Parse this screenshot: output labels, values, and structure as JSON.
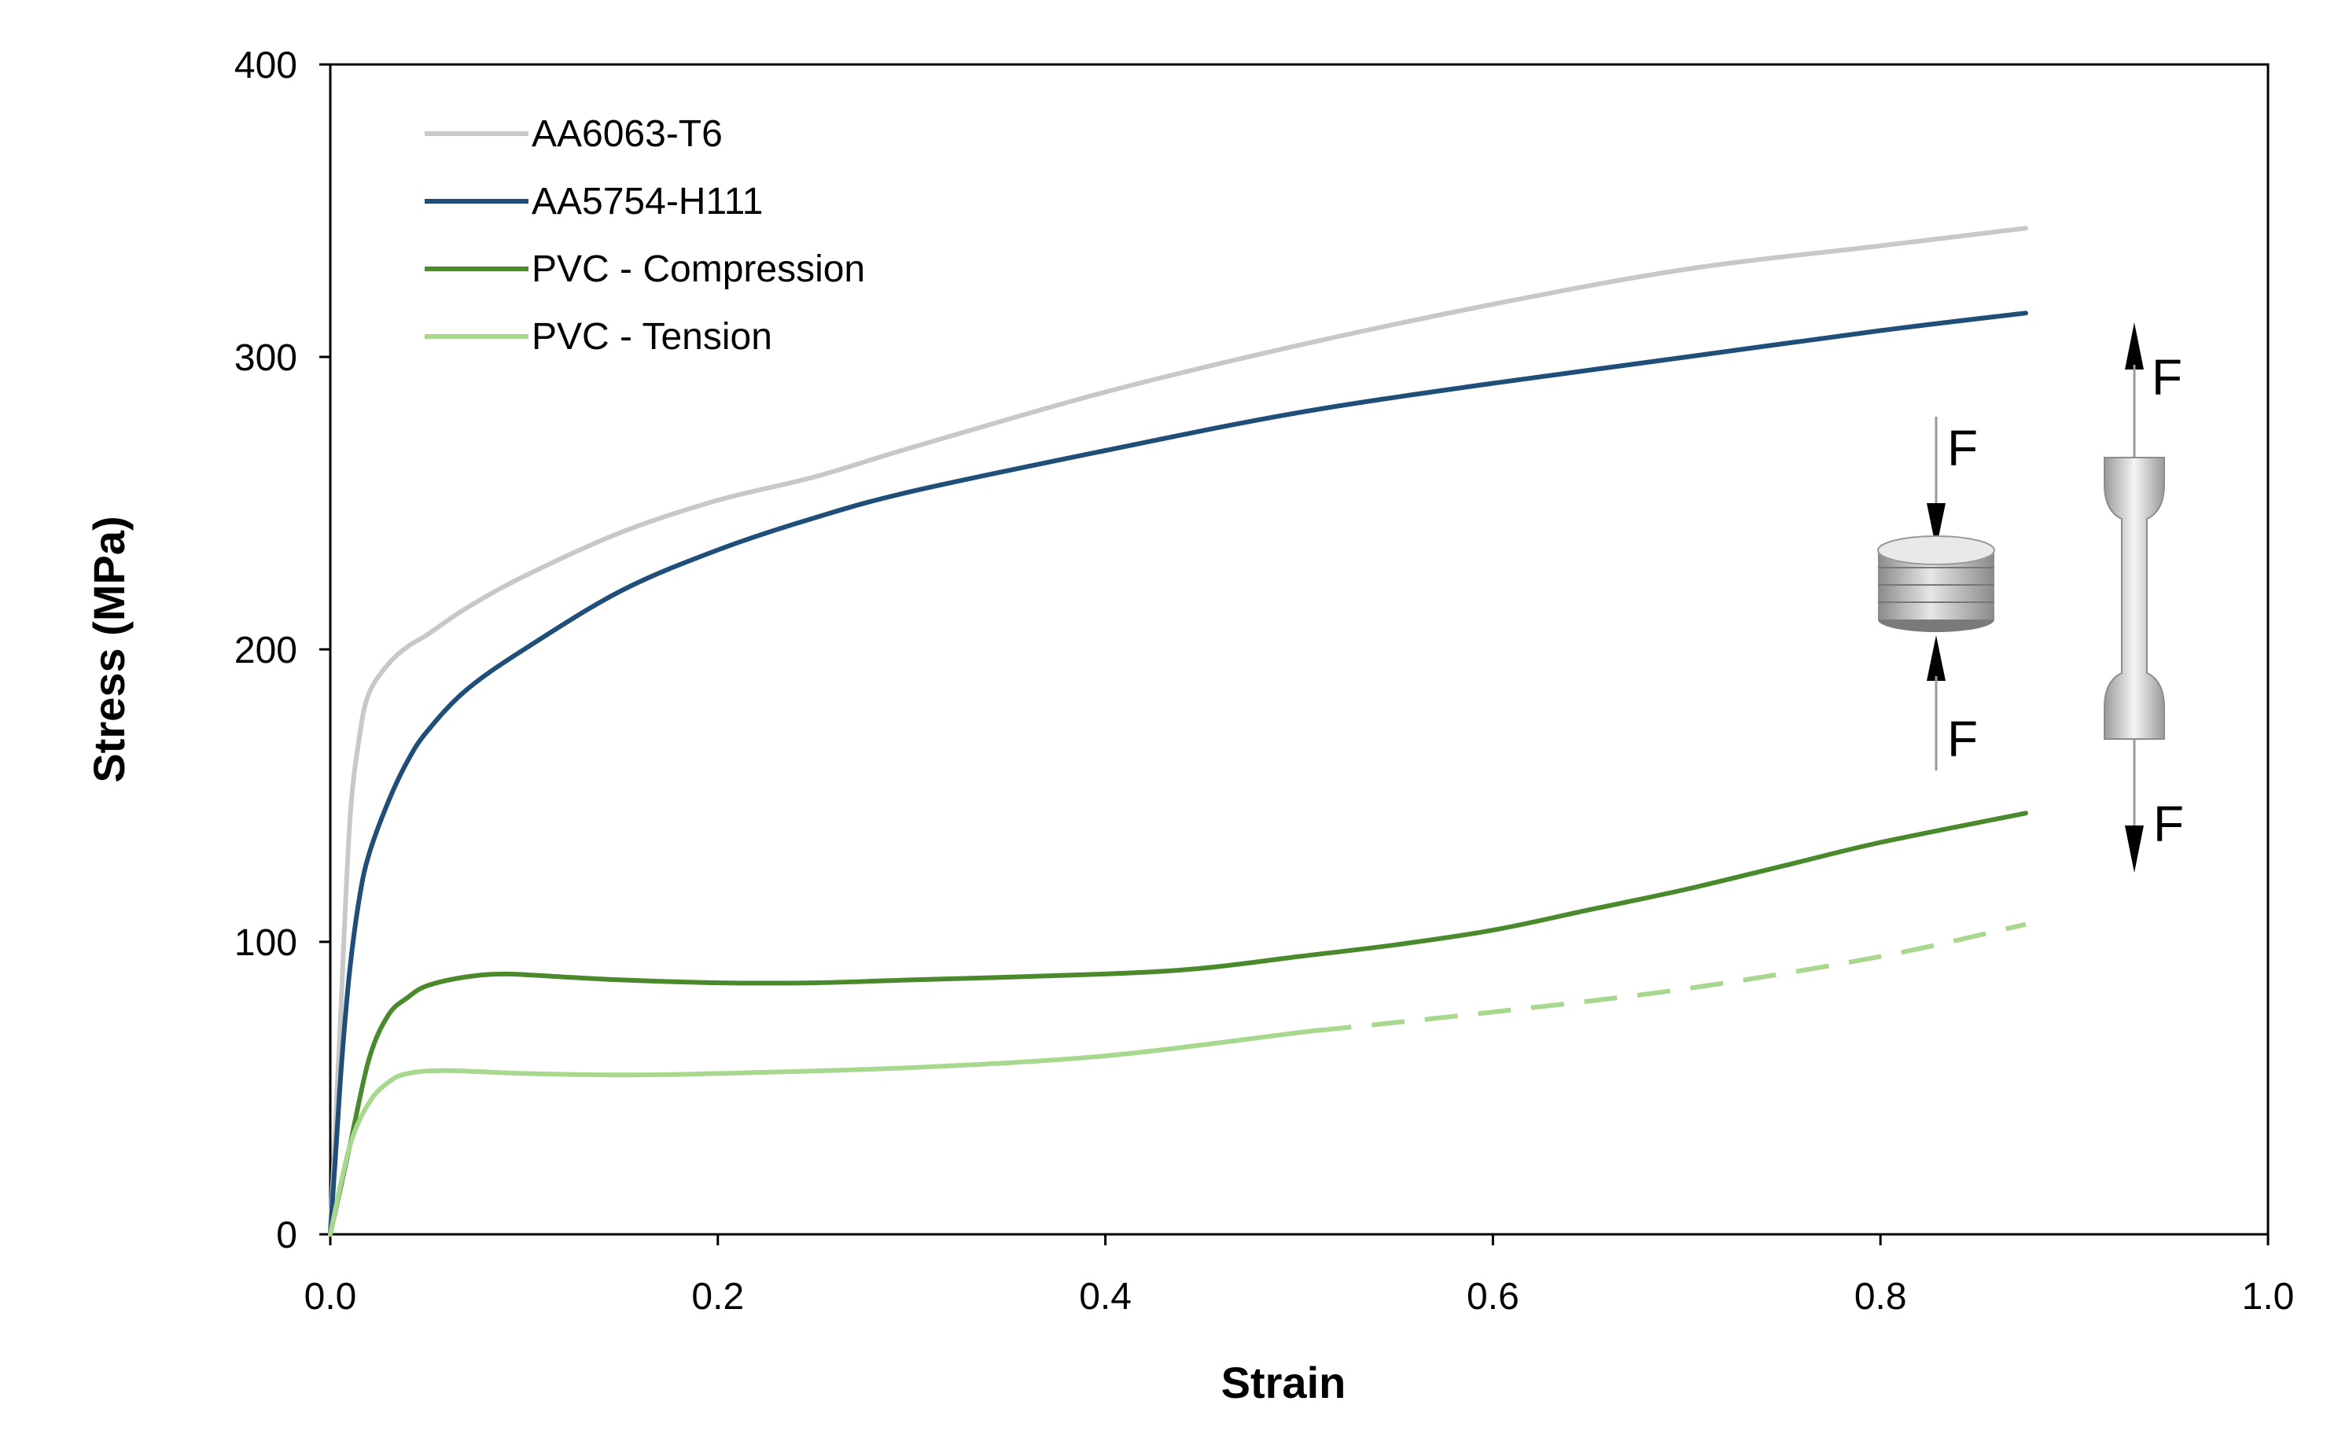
{
  "chart_data": {
    "type": "line",
    "title": "",
    "xlabel": "Strain",
    "ylabel": "Stress (MPa)",
    "xlim": [
      0.0,
      1.0
    ],
    "ylim": [
      0,
      400
    ],
    "x_ticks": [
      "0.0",
      "0.2",
      "0.4",
      "0.6",
      "0.8",
      "1.0"
    ],
    "y_ticks": [
      "0",
      "100",
      "200",
      "300",
      "400"
    ],
    "grid": false,
    "legend_position": "top-left",
    "series": [
      {
        "name": "AA6063-T6",
        "color": "#c8c8c8",
        "style": "solid",
        "points": [
          [
            0,
            0
          ],
          [
            0.005,
            70
          ],
          [
            0.01,
            140
          ],
          [
            0.015,
            170
          ],
          [
            0.02,
            185
          ],
          [
            0.03,
            195
          ],
          [
            0.04,
            201
          ],
          [
            0.05,
            205
          ],
          [
            0.07,
            214
          ],
          [
            0.1,
            225
          ],
          [
            0.15,
            240
          ],
          [
            0.2,
            251
          ],
          [
            0.25,
            259
          ],
          [
            0.3,
            269
          ],
          [
            0.4,
            288
          ],
          [
            0.5,
            304
          ],
          [
            0.6,
            318
          ],
          [
            0.7,
            330
          ],
          [
            0.8,
            338
          ],
          [
            0.875,
            344
          ]
        ]
      },
      {
        "name": "AA5754-H111",
        "color": "#1f4e79",
        "style": "solid",
        "points": [
          [
            0,
            0
          ],
          [
            0.003,
            30
          ],
          [
            0.006,
            60
          ],
          [
            0.01,
            90
          ],
          [
            0.015,
            115
          ],
          [
            0.02,
            130
          ],
          [
            0.03,
            148
          ],
          [
            0.04,
            162
          ],
          [
            0.05,
            172
          ],
          [
            0.07,
            186
          ],
          [
            0.1,
            200
          ],
          [
            0.15,
            220
          ],
          [
            0.2,
            234
          ],
          [
            0.25,
            245
          ],
          [
            0.3,
            254
          ],
          [
            0.4,
            268
          ],
          [
            0.5,
            281
          ],
          [
            0.6,
            291
          ],
          [
            0.7,
            300
          ],
          [
            0.8,
            309
          ],
          [
            0.875,
            315
          ]
        ]
      },
      {
        "name": "PVC - Compression",
        "color": "#4a8a2c",
        "style": "solid",
        "points": [
          [
            0,
            0
          ],
          [
            0.01,
            30
          ],
          [
            0.02,
            60
          ],
          [
            0.03,
            75
          ],
          [
            0.04,
            81
          ],
          [
            0.05,
            85
          ],
          [
            0.07,
            88
          ],
          [
            0.09,
            89
          ],
          [
            0.12,
            88
          ],
          [
            0.15,
            87
          ],
          [
            0.2,
            86
          ],
          [
            0.25,
            86
          ],
          [
            0.3,
            87
          ],
          [
            0.4,
            89
          ],
          [
            0.45,
            91
          ],
          [
            0.5,
            95
          ],
          [
            0.55,
            99
          ],
          [
            0.6,
            104
          ],
          [
            0.65,
            111
          ],
          [
            0.7,
            118
          ],
          [
            0.75,
            126
          ],
          [
            0.8,
            134
          ],
          [
            0.875,
            144
          ]
        ]
      },
      {
        "name": "PVC - Tension",
        "color": "#a8d88e",
        "style": "solid-then-dashed",
        "dashed_from_x": 0.51,
        "points": [
          [
            0,
            0
          ],
          [
            0.01,
            30
          ],
          [
            0.02,
            45
          ],
          [
            0.03,
            52
          ],
          [
            0.04,
            55
          ],
          [
            0.06,
            56
          ],
          [
            0.1,
            55
          ],
          [
            0.15,
            54.5
          ],
          [
            0.2,
            55
          ],
          [
            0.3,
            57
          ],
          [
            0.4,
            61
          ],
          [
            0.5,
            69
          ],
          [
            0.6,
            76
          ],
          [
            0.7,
            84
          ],
          [
            0.8,
            95
          ],
          [
            0.875,
            106
          ]
        ]
      }
    ]
  },
  "illustration": {
    "compression_labels": [
      "F",
      "F"
    ],
    "tension_labels": [
      "F",
      "F"
    ],
    "colors": {
      "arrow": "#000000",
      "specimen_light": "#f2f2f2",
      "specimen_dark": "#8c8c8c"
    }
  }
}
